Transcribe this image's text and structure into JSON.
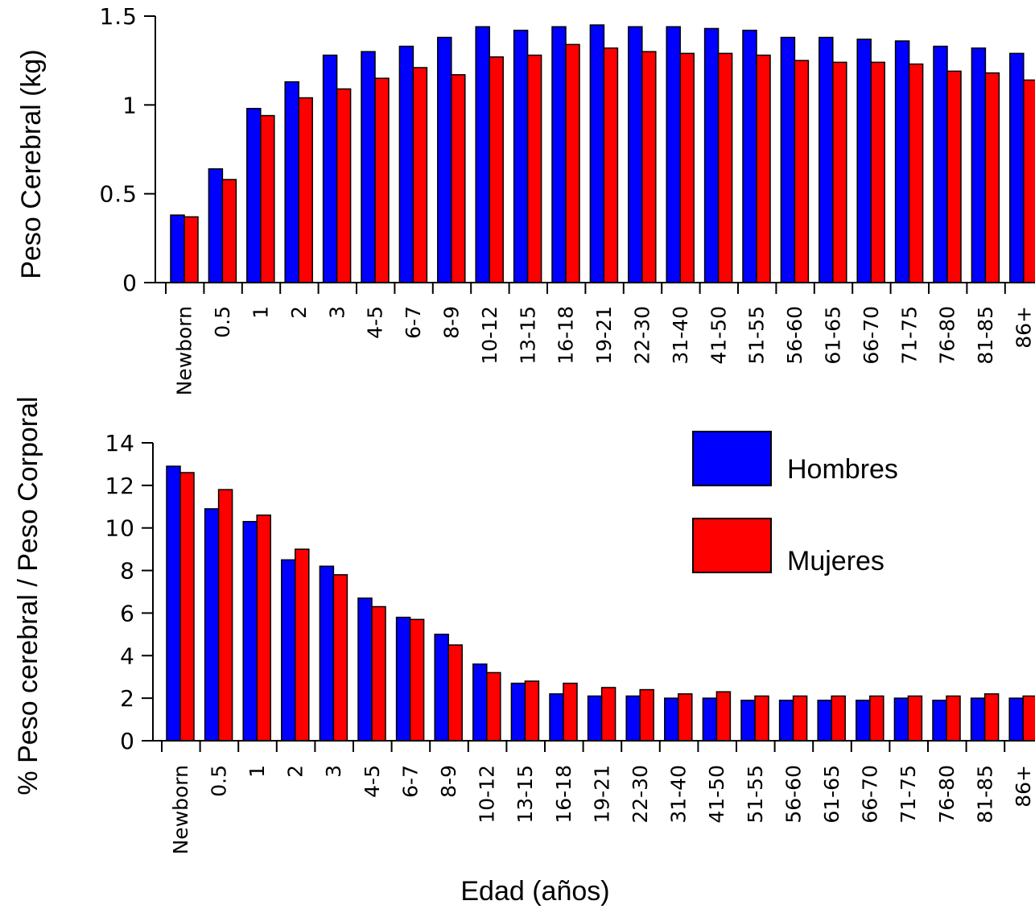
{
  "chart_data": [
    {
      "type": "bar",
      "ylabel": "Peso Cerebral (kg)",
      "ylim": [
        0,
        1.5
      ],
      "yticks": [
        "0",
        "0.5",
        "1",
        "1.5"
      ],
      "categories": [
        "Newborn",
        "0.5",
        "1",
        "2",
        "3",
        "4-5",
        "6-7",
        "8-9",
        "10-12",
        "13-15",
        "16-18",
        "19-21",
        "22-30",
        "31-40",
        "41-50",
        "51-55",
        "56-60",
        "61-65",
        "66-70",
        "71-75",
        "76-80",
        "81-85",
        "86+"
      ],
      "series": [
        {
          "name": "Hombres",
          "color": "#0000ff",
          "values": [
            0.38,
            0.64,
            0.98,
            1.13,
            1.28,
            1.3,
            1.33,
            1.38,
            1.44,
            1.42,
            1.44,
            1.45,
            1.44,
            1.44,
            1.43,
            1.42,
            1.38,
            1.38,
            1.37,
            1.36,
            1.33,
            1.32,
            1.29
          ]
        },
        {
          "name": "Mujeres",
          "color": "#ff0000",
          "values": [
            0.37,
            0.58,
            0.94,
            1.04,
            1.09,
            1.15,
            1.21,
            1.17,
            1.27,
            1.28,
            1.34,
            1.32,
            1.3,
            1.29,
            1.29,
            1.28,
            1.25,
            1.24,
            1.24,
            1.23,
            1.19,
            1.18,
            1.14
          ]
        }
      ],
      "grid": false
    },
    {
      "type": "bar",
      "xlabel": "Edad (años)",
      "ylabel": "% Peso cerebral / Peso Corporal",
      "ylim": [
        0,
        14
      ],
      "yticks": [
        "0",
        "2",
        "4",
        "6",
        "8",
        "10",
        "12",
        "14"
      ],
      "categories": [
        "Newborn",
        "0.5",
        "1",
        "2",
        "3",
        "4-5",
        "6-7",
        "8-9",
        "10-12",
        "13-15",
        "16-18",
        "19-21",
        "22-30",
        "31-40",
        "41-50",
        "51-55",
        "56-60",
        "61-65",
        "66-70",
        "71-75",
        "76-80",
        "81-85",
        "86+"
      ],
      "series": [
        {
          "name": "Hombres",
          "color": "#0000ff",
          "values": [
            12.9,
            10.9,
            10.3,
            8.5,
            8.2,
            6.7,
            5.8,
            5.0,
            3.6,
            2.7,
            2.2,
            2.1,
            2.1,
            2.0,
            2.0,
            1.9,
            1.9,
            1.9,
            1.9,
            2.0,
            1.9,
            2.0,
            2.0
          ]
        },
        {
          "name": "Mujeres",
          "color": "#ff0000",
          "values": [
            12.6,
            11.8,
            10.6,
            9.0,
            7.8,
            6.3,
            5.7,
            4.5,
            3.2,
            2.8,
            2.7,
            2.5,
            2.4,
            2.2,
            2.3,
            2.1,
            2.1,
            2.1,
            2.1,
            2.1,
            2.1,
            2.2,
            2.1
          ]
        }
      ],
      "legend": {
        "placement": "top-right",
        "items": [
          {
            "label": "Hombres",
            "color": "#0000ff"
          },
          {
            "label": "Mujeres",
            "color": "#ff0000"
          }
        ]
      },
      "grid": false
    }
  ]
}
